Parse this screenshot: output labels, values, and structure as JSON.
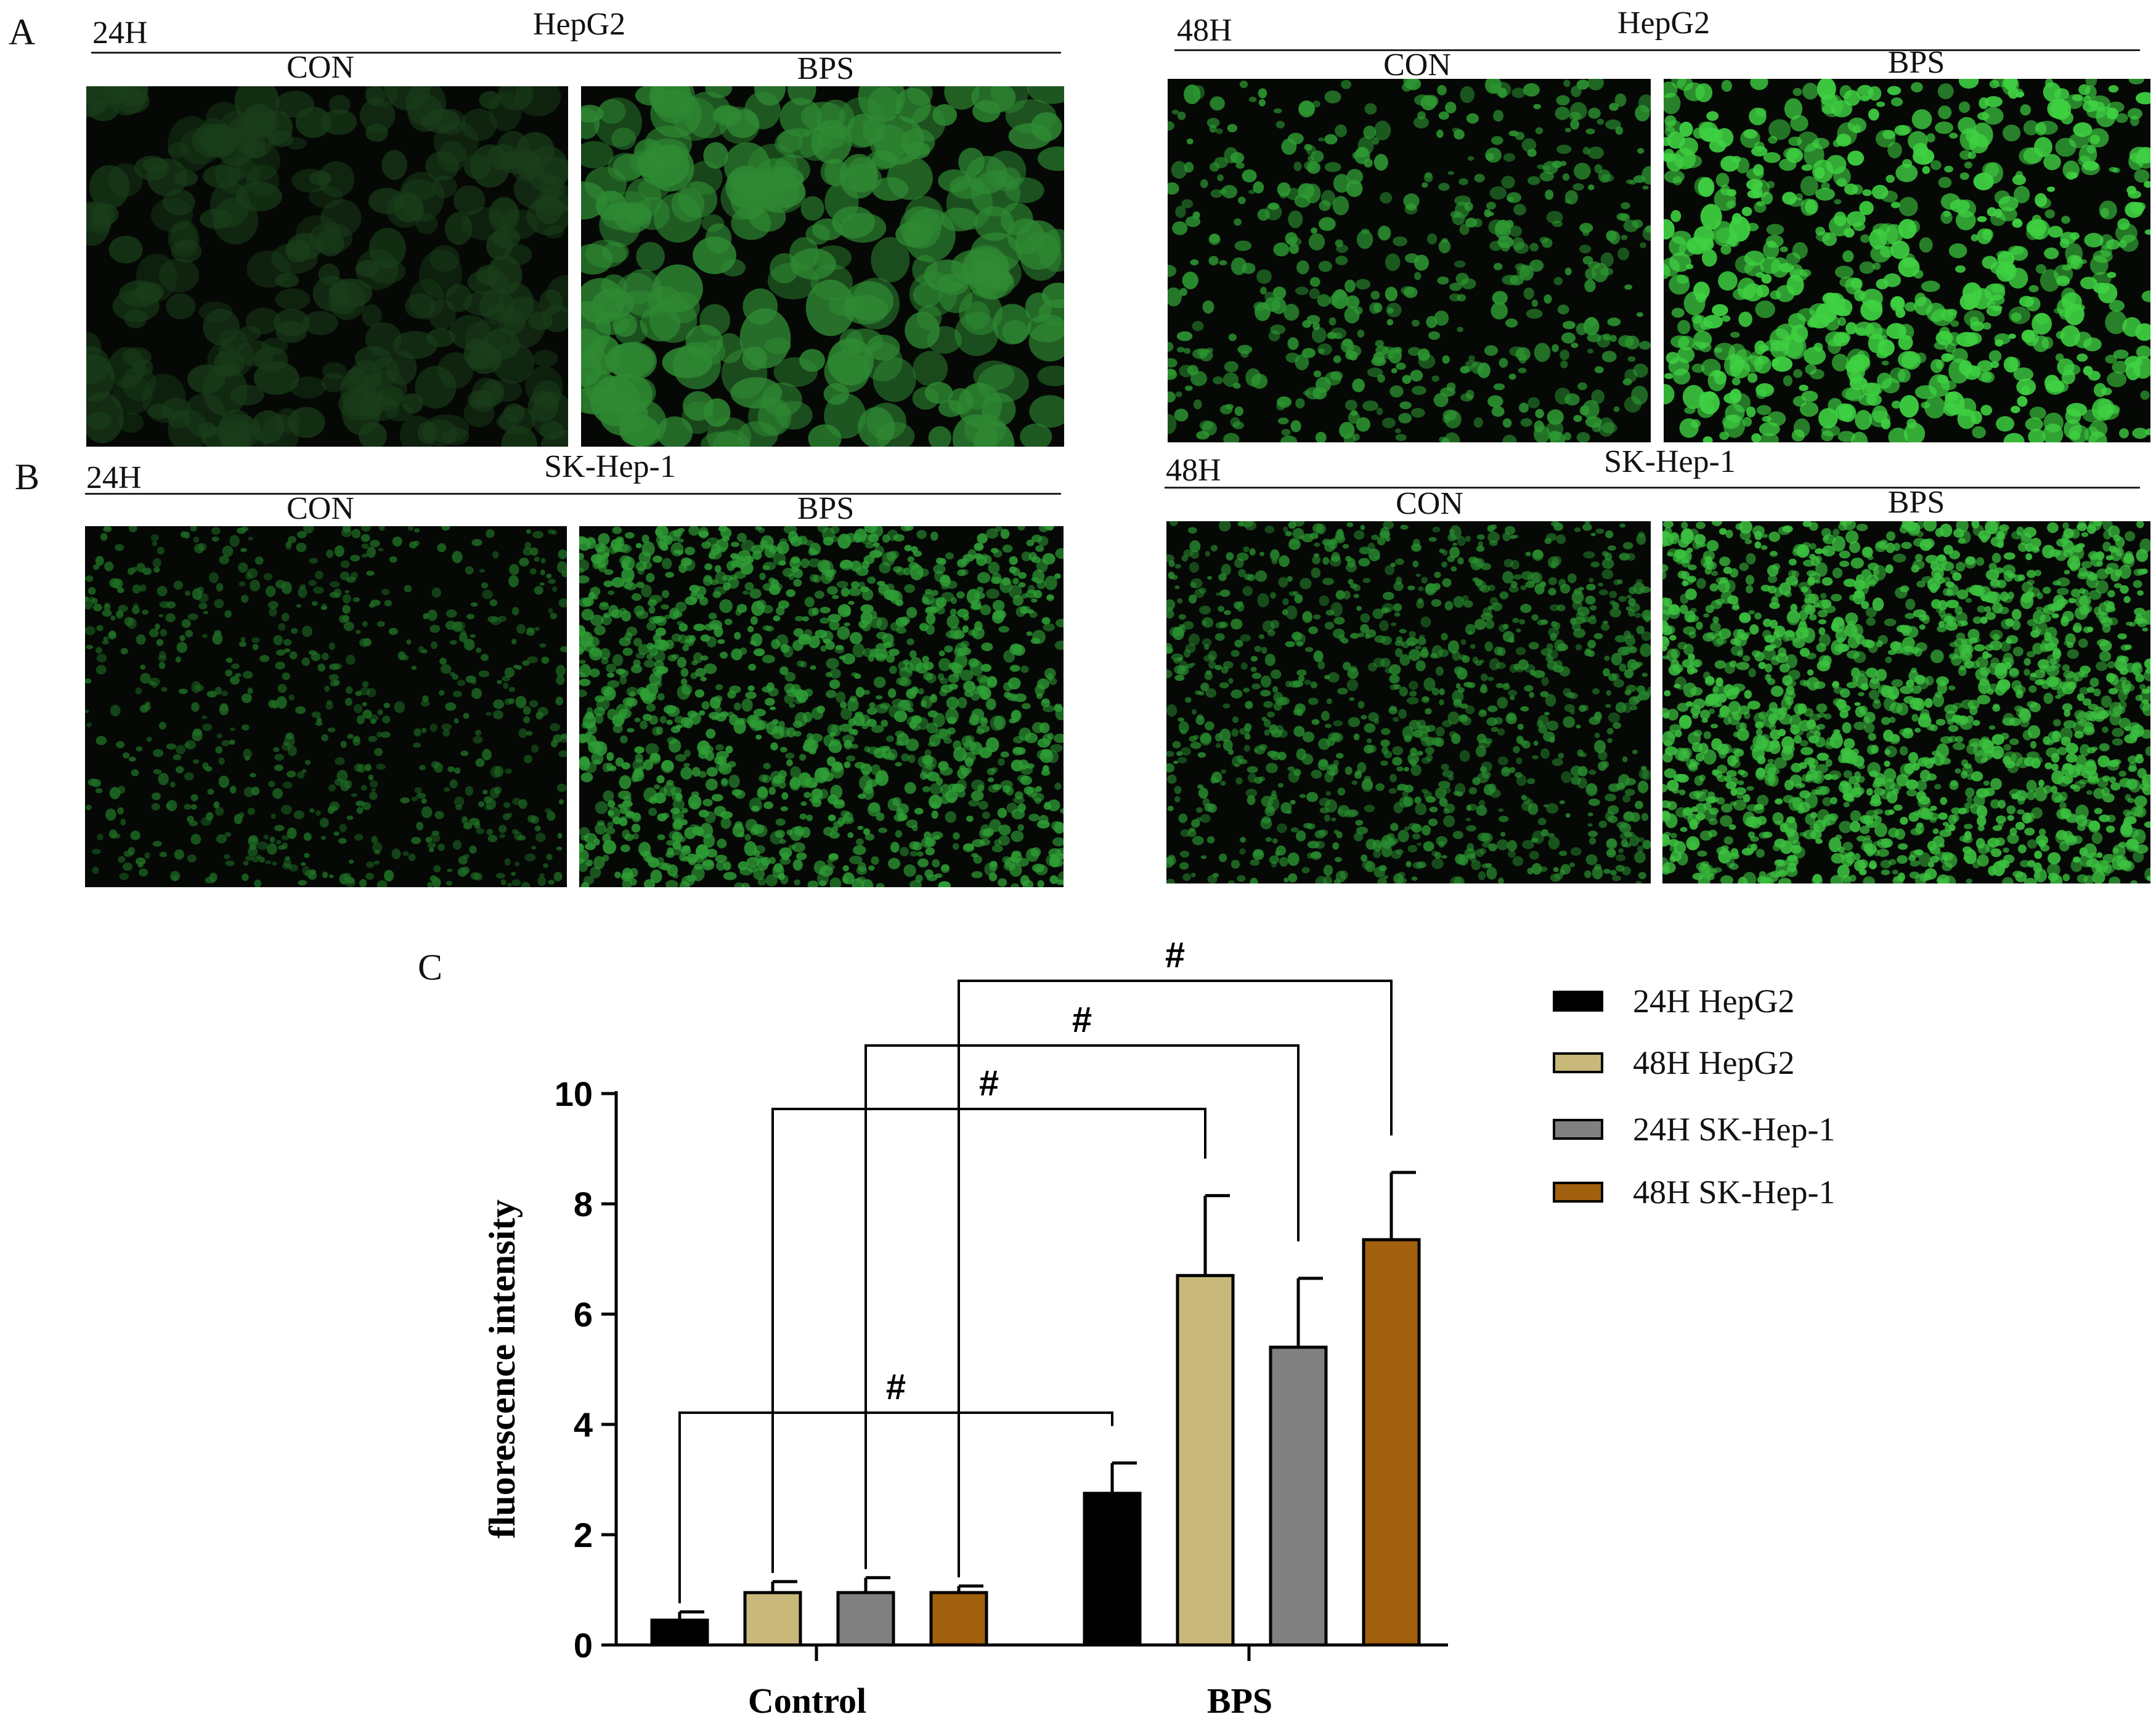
{
  "panels": {
    "A": {
      "letter": "A",
      "left": {
        "time": "24H",
        "cell_line": "HepG2",
        "conditions": [
          "CON",
          "BPS"
        ]
      },
      "right": {
        "time": "48H",
        "cell_line": "HepG2",
        "conditions": [
          "CON",
          "BPS"
        ]
      }
    },
    "B": {
      "letter": "B",
      "left": {
        "time": "24H",
        "cell_line": "SK-Hep-1",
        "conditions": [
          "CON",
          "BPS"
        ]
      },
      "right": {
        "time": "48H",
        "cell_line": "SK-Hep-1",
        "conditions": [
          "CON",
          "BPS"
        ]
      }
    },
    "C": {
      "letter": "C"
    }
  },
  "chart_data": {
    "type": "bar",
    "categories": [
      "Control",
      "BPS"
    ],
    "ylabel": "fluorescence intensity",
    "xlabel": "",
    "ylim": [
      0,
      10
    ],
    "yticks": [
      0,
      2,
      4,
      6,
      8,
      10
    ],
    "series": [
      {
        "name": "24H HepG2",
        "color": "#000000",
        "values": [
          0.45,
          2.75
        ],
        "errors": [
          0.15,
          0.55
        ]
      },
      {
        "name": "48H HepG2",
        "color": "#c8b87a",
        "values": [
          0.95,
          6.7
        ],
        "errors": [
          0.2,
          1.45
        ]
      },
      {
        "name": "24H SK-Hep-1",
        "color": "#808080",
        "values": [
          0.95,
          5.4
        ],
        "errors": [
          0.27,
          1.25
        ]
      },
      {
        "name": "48H SK-Hep-1",
        "color": "#a0600e",
        "values": [
          0.95,
          7.35
        ],
        "errors": [
          0.12,
          1.22
        ]
      }
    ],
    "significance": [
      {
        "series": 0,
        "symbol": "#"
      },
      {
        "series": 1,
        "symbol": "#"
      },
      {
        "series": 2,
        "symbol": "#"
      },
      {
        "series": 3,
        "symbol": "#"
      }
    ],
    "legend_position": "right"
  }
}
